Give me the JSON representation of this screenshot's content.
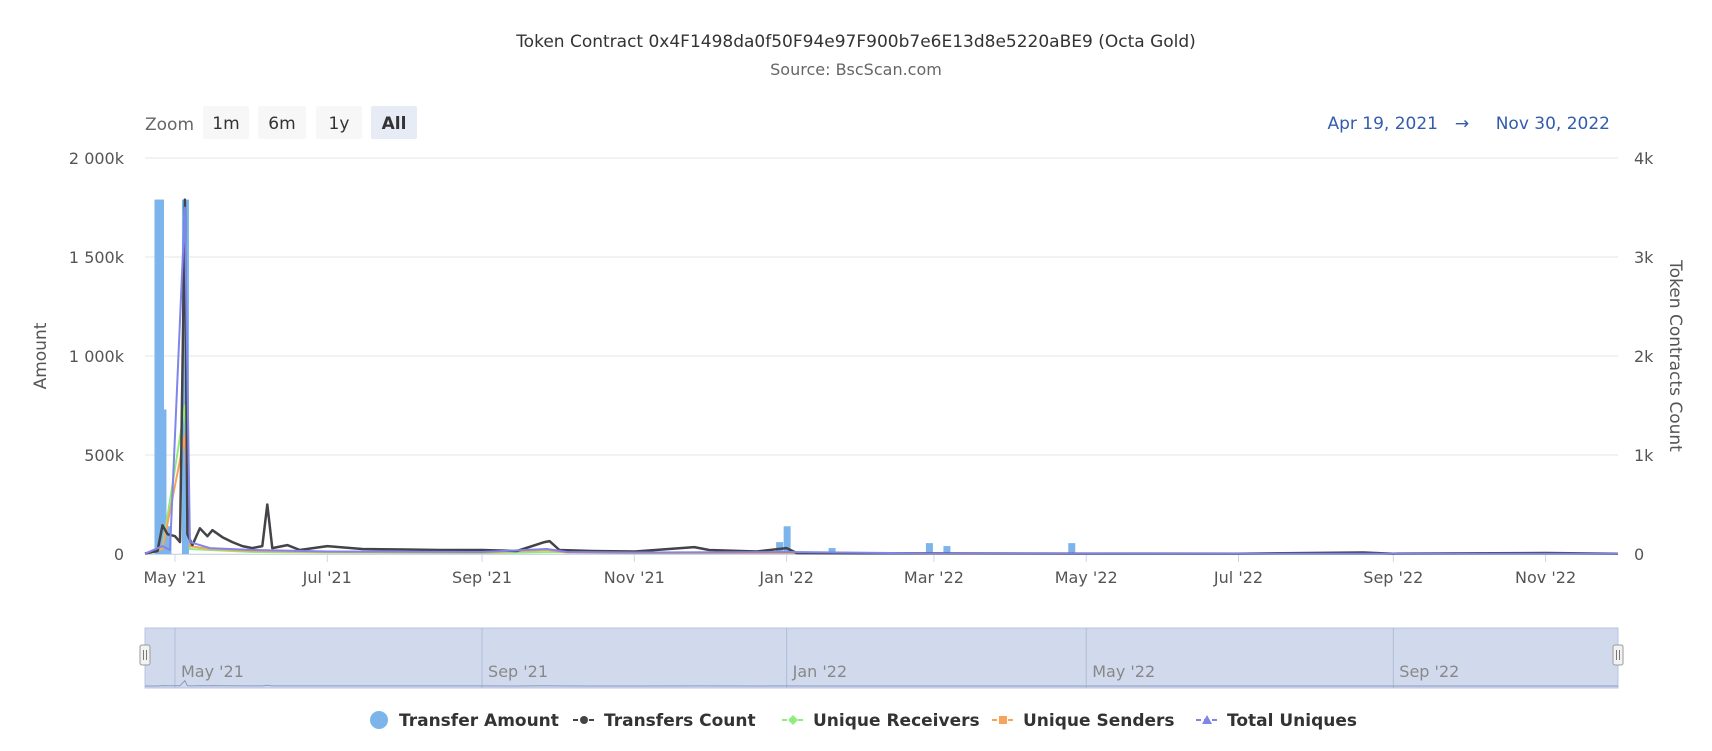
{
  "chart_data": {
    "type": "bar",
    "title": "Token Contract 0x4F1498da0f50F94e97F900b7e6E13d8e5220aBE9 (Octa Gold)",
    "subtitle": "Source: BscScan.com",
    "ylabel": "Amount",
    "y2label": "Token Contracts Count",
    "ylim": [
      0,
      2000000
    ],
    "y2lim": [
      0,
      4000
    ],
    "yticks": [
      "0",
      "500k",
      "1 000k",
      "1 500k",
      "2 000k"
    ],
    "y2ticks": [
      "0",
      "1k",
      "2k",
      "3k",
      "4k"
    ],
    "x_range": [
      "2021-04-19",
      "2022-11-30"
    ],
    "xticks": [
      {
        "date": "2021-05-01",
        "label": "May '21"
      },
      {
        "date": "2021-07-01",
        "label": "Jul '21"
      },
      {
        "date": "2021-09-01",
        "label": "Sep '21"
      },
      {
        "date": "2021-11-01",
        "label": "Nov '21"
      },
      {
        "date": "2022-01-01",
        "label": "Jan '22"
      },
      {
        "date": "2022-03-01",
        "label": "Mar '22"
      },
      {
        "date": "2022-05-01",
        "label": "May '22"
      },
      {
        "date": "2022-07-01",
        "label": "Jul '22"
      },
      {
        "date": "2022-09-01",
        "label": "Sep '22"
      },
      {
        "date": "2022-11-01",
        "label": "Nov '22"
      }
    ],
    "grid": true,
    "legend_position": "bottom-center",
    "series": [
      {
        "name": "Transfer Amount",
        "type": "column",
        "axis": "left",
        "color": "#7cb5ec",
        "points": [
          [
            "2021-04-24",
            1790000
          ],
          [
            "2021-04-25",
            1790000
          ],
          [
            "2021-04-26",
            730000
          ],
          [
            "2021-04-27",
            140000
          ],
          [
            "2021-04-28",
            140000
          ],
          [
            "2021-05-05",
            1790000
          ],
          [
            "2021-12-29",
            60000
          ],
          [
            "2022-01-01",
            140000
          ],
          [
            "2022-01-19",
            30000
          ],
          [
            "2022-02-27",
            55000
          ],
          [
            "2022-03-06",
            40000
          ],
          [
            "2022-04-25",
            55000
          ]
        ]
      },
      {
        "name": "Transfers Count",
        "type": "line",
        "axis": "right",
        "color": "#434348",
        "points": [
          [
            "2021-04-19",
            5
          ],
          [
            "2021-04-24",
            30
          ],
          [
            "2021-04-26",
            290
          ],
          [
            "2021-04-28",
            200
          ],
          [
            "2021-05-01",
            180
          ],
          [
            "2021-05-03",
            120
          ],
          [
            "2021-05-05",
            3580
          ],
          [
            "2021-05-06",
            200
          ],
          [
            "2021-05-08",
            90
          ],
          [
            "2021-05-11",
            260
          ],
          [
            "2021-05-14",
            180
          ],
          [
            "2021-05-16",
            240
          ],
          [
            "2021-05-20",
            170
          ],
          [
            "2021-05-24",
            120
          ],
          [
            "2021-05-28",
            80
          ],
          [
            "2021-06-01",
            60
          ],
          [
            "2021-06-05",
            80
          ],
          [
            "2021-06-07",
            500
          ],
          [
            "2021-06-09",
            60
          ],
          [
            "2021-06-15",
            90
          ],
          [
            "2021-06-20",
            40
          ],
          [
            "2021-07-01",
            80
          ],
          [
            "2021-07-15",
            50
          ],
          [
            "2021-08-01",
            45
          ],
          [
            "2021-08-15",
            40
          ],
          [
            "2021-09-01",
            40
          ],
          [
            "2021-09-15",
            30
          ],
          [
            "2021-09-26",
            120
          ],
          [
            "2021-09-28",
            130
          ],
          [
            "2021-10-02",
            40
          ],
          [
            "2021-10-15",
            30
          ],
          [
            "2021-11-01",
            25
          ],
          [
            "2021-11-25",
            70
          ],
          [
            "2021-12-01",
            40
          ],
          [
            "2021-12-20",
            25
          ],
          [
            "2022-01-01",
            60
          ],
          [
            "2022-01-05",
            10
          ],
          [
            "2022-02-01",
            8
          ],
          [
            "2022-03-01",
            6
          ],
          [
            "2022-05-01",
            4
          ],
          [
            "2022-07-01",
            3
          ],
          [
            "2022-08-20",
            15
          ],
          [
            "2022-09-01",
            3
          ],
          [
            "2022-11-01",
            10
          ],
          [
            "2022-11-30",
            3
          ]
        ]
      },
      {
        "name": "Unique Receivers",
        "type": "line",
        "axis": "right",
        "color": "#90ed7d",
        "points": [
          [
            "2021-04-19",
            2
          ],
          [
            "2021-04-26",
            60
          ],
          [
            "2021-05-05",
            1500
          ],
          [
            "2021-05-07",
            50
          ],
          [
            "2021-05-15",
            40
          ],
          [
            "2021-06-01",
            20
          ],
          [
            "2021-07-01",
            15
          ],
          [
            "2021-09-01",
            10
          ],
          [
            "2021-10-01",
            20
          ],
          [
            "2021-11-01",
            8
          ],
          [
            "2022-01-01",
            10
          ],
          [
            "2022-03-01",
            3
          ],
          [
            "2022-07-01",
            2
          ],
          [
            "2022-11-30",
            2
          ]
        ]
      },
      {
        "name": "Unique Senders",
        "type": "line",
        "axis": "right",
        "color": "#f7a35c",
        "points": [
          [
            "2021-04-19",
            2
          ],
          [
            "2021-04-26",
            50
          ],
          [
            "2021-05-05",
            1200
          ],
          [
            "2021-05-07",
            80
          ],
          [
            "2021-05-15",
            50
          ],
          [
            "2021-06-01",
            30
          ],
          [
            "2021-07-01",
            20
          ],
          [
            "2021-09-01",
            15
          ],
          [
            "2021-09-27",
            40
          ],
          [
            "2021-10-05",
            15
          ],
          [
            "2021-11-01",
            10
          ],
          [
            "2022-01-01",
            10
          ],
          [
            "2022-03-01",
            3
          ],
          [
            "2022-07-01",
            2
          ],
          [
            "2022-11-30",
            2
          ]
        ]
      },
      {
        "name": "Total Uniques",
        "type": "line",
        "axis": "right",
        "color": "#8085e9",
        "points": [
          [
            "2021-04-19",
            3
          ],
          [
            "2021-04-26",
            80
          ],
          [
            "2021-04-29",
            40
          ],
          [
            "2021-05-05",
            3500
          ],
          [
            "2021-05-07",
            120
          ],
          [
            "2021-05-11",
            90
          ],
          [
            "2021-05-15",
            60
          ],
          [
            "2021-06-01",
            40
          ],
          [
            "2021-07-01",
            25
          ],
          [
            "2021-09-01",
            20
          ],
          [
            "2021-09-27",
            50
          ],
          [
            "2021-10-05",
            20
          ],
          [
            "2021-11-01",
            15
          ],
          [
            "2022-01-01",
            20
          ],
          [
            "2022-03-01",
            5
          ],
          [
            "2022-07-01",
            3
          ],
          [
            "2022-11-30",
            3
          ]
        ]
      }
    ]
  },
  "zoom": {
    "label": "Zoom",
    "buttons": [
      "1m",
      "6m",
      "1y",
      "All"
    ],
    "selected": "All"
  },
  "range": {
    "from": "Apr 19, 2021",
    "arrow": "→",
    "to": "Nov 30, 2022"
  },
  "navigator": {
    "labels": [
      {
        "date": "2021-05-01",
        "label": "May '21"
      },
      {
        "date": "2021-09-01",
        "label": "Sep '21"
      },
      {
        "date": "2022-01-01",
        "label": "Jan '22"
      },
      {
        "date": "2022-05-01",
        "label": "May '22"
      },
      {
        "date": "2022-09-01",
        "label": "Sep '22"
      }
    ],
    "range": [
      "2021-04-19",
      "2022-11-30"
    ]
  },
  "colors": {
    "grid": "#e6e6e6",
    "navigator_fill": "#ccd6eb",
    "zoom_bg": "#f7f7f7",
    "zoom_selected_bg": "#e6ebf5"
  }
}
